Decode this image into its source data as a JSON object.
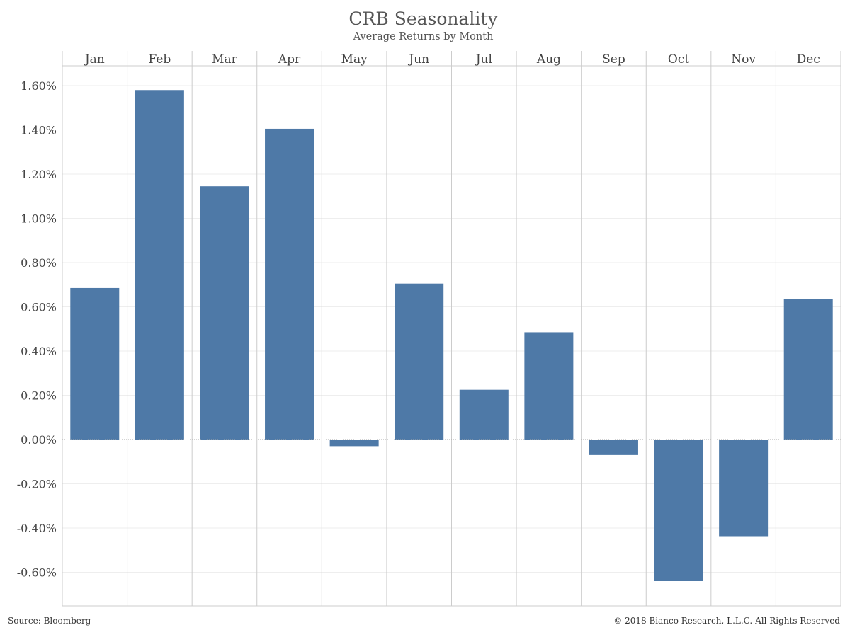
{
  "chart_data": {
    "type": "bar",
    "title": "CRB Seasonality",
    "subtitle": "Average Returns by Month",
    "categories": [
      "Jan",
      "Feb",
      "Mar",
      "Apr",
      "May",
      "Jun",
      "Jul",
      "Aug",
      "Sep",
      "Oct",
      "Nov",
      "Dec"
    ],
    "values": [
      0.685,
      1.58,
      1.145,
      1.405,
      -0.03,
      0.705,
      0.225,
      0.485,
      -0.07,
      -0.64,
      -0.44,
      0.635
    ],
    "value_unit": "percent",
    "y_ticks": [
      "1.60%",
      "1.40%",
      "1.20%",
      "1.00%",
      "0.80%",
      "0.60%",
      "0.40%",
      "0.20%",
      "0.00%",
      "-0.20%",
      "-0.40%",
      "-0.60%"
    ],
    "y_tick_values": [
      1.6,
      1.4,
      1.2,
      1.0,
      0.8,
      0.6,
      0.4,
      0.2,
      0.0,
      -0.2,
      -0.4,
      -0.6
    ],
    "ylim": [
      -0.75,
      1.69
    ],
    "xlabel": "",
    "ylabel": "",
    "x_axis_position": "top",
    "grid": true,
    "legend": "none",
    "bar_color": "#4e79a7"
  },
  "footer": {
    "source": "Source: Bloomberg",
    "copyright": "© 2018 Bianco Research, L.L.C. All Rights Reserved"
  }
}
